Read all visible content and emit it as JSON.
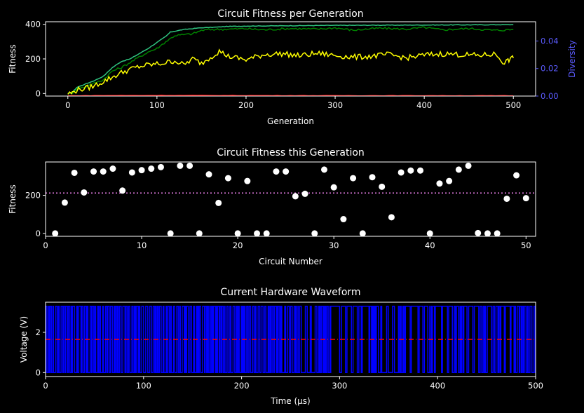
{
  "colors": {
    "background": "#000000",
    "axes": "#ffffff",
    "best": "#2ec27e",
    "upper": "#008000",
    "average": "#ffff00",
    "diversity": "#ff0000",
    "diversity_axis": "#5b5bff",
    "scatter": "#ffffff",
    "mean_line": "#ee82ee",
    "waveform": "#0000ff",
    "threshold": "#ff0000"
  },
  "chart_data": [
    {
      "id": "fitness-per-generation",
      "type": "line",
      "title": "Circuit Fitness per Generation",
      "xlabel": "Generation",
      "ylabel": "Fitness",
      "y2label": "Diversity",
      "xlim": [
        -25,
        525
      ],
      "ylim": [
        -15,
        415
      ],
      "y2lim": [
        0,
        0.054
      ],
      "xticks": [
        "0",
        "100",
        "200",
        "300",
        "400",
        "500"
      ],
      "yticks": [
        "0",
        "200",
        "400"
      ],
      "y2ticks": [
        "0.00",
        "0.02",
        "0.04"
      ],
      "grid": false,
      "series": [
        {
          "key": "best",
          "axis": "left",
          "color": "#2ec27e",
          "x": [
            0,
            5,
            10,
            20,
            30,
            40,
            50,
            60,
            70,
            80,
            90,
            100,
            110,
            115,
            120,
            130,
            140,
            150,
            160,
            170,
            180,
            200,
            250,
            300,
            350,
            400,
            450,
            500
          ],
          "y": [
            0,
            5,
            35,
            55,
            75,
            100,
            150,
            185,
            200,
            230,
            260,
            295,
            330,
            355,
            360,
            370,
            375,
            380,
            382,
            385,
            388,
            390,
            392,
            394,
            395,
            396,
            397,
            398
          ]
        },
        {
          "key": "upper",
          "axis": "left",
          "color": "#008000",
          "x": [
            0,
            5,
            10,
            20,
            30,
            40,
            50,
            60,
            70,
            80,
            90,
            100,
            110,
            120,
            130,
            140,
            150,
            160,
            180,
            200,
            220,
            250,
            280,
            300,
            320,
            350,
            380,
            400,
            420,
            450,
            480,
            500
          ],
          "y": [
            0,
            5,
            25,
            40,
            60,
            80,
            130,
            150,
            180,
            210,
            240,
            260,
            300,
            335,
            340,
            345,
            365,
            370,
            372,
            375,
            368,
            376,
            372,
            380,
            366,
            378,
            372,
            382,
            368,
            376,
            365,
            370
          ]
        },
        {
          "key": "average",
          "axis": "left",
          "color": "#ffff00",
          "x": [
            0,
            5,
            10,
            20,
            30,
            40,
            50,
            60,
            70,
            80,
            90,
            100,
            110,
            120,
            130,
            140,
            150,
            160,
            170,
            180,
            190,
            200,
            220,
            240,
            260,
            280,
            300,
            320,
            340,
            360,
            380,
            400,
            420,
            440,
            460,
            480,
            490,
            495,
            500
          ],
          "y": [
            0,
            3,
            20,
            30,
            45,
            70,
            95,
            120,
            140,
            155,
            165,
            170,
            178,
            190,
            165,
            200,
            175,
            210,
            245,
            215,
            205,
            195,
            225,
            230,
            218,
            232,
            220,
            210,
            215,
            225,
            205,
            222,
            230,
            225,
            220,
            228,
            175,
            195,
            205
          ]
        },
        {
          "key": "diversity",
          "axis": "right",
          "color": "#ff0000",
          "x": [
            0,
            50,
            100,
            200,
            300,
            400,
            500
          ],
          "y": [
            0.0002,
            0.0004,
            0.0005,
            0.0004,
            0.0003,
            0.0003,
            0.0002
          ]
        }
      ]
    },
    {
      "id": "fitness-this-generation",
      "type": "scatter",
      "title": "Circuit Fitness this Generation",
      "xlabel": "Circuit Number",
      "ylabel": "Fitness",
      "xlim": [
        0,
        51
      ],
      "ylim": [
        -15,
        375
      ],
      "xticks": [
        "0",
        "10",
        "20",
        "30",
        "40",
        "50"
      ],
      "yticks": [
        "0",
        "200"
      ],
      "mean": 212,
      "grid": false,
      "x": [
        1,
        2,
        3,
        4,
        5,
        6,
        7,
        8,
        9,
        10,
        11,
        12,
        13,
        14,
        15,
        16,
        17,
        18,
        19,
        20,
        21,
        22,
        23,
        24,
        25,
        26,
        27,
        28,
        29,
        30,
        31,
        32,
        33,
        34,
        35,
        36,
        37,
        38,
        39,
        40,
        41,
        42,
        43,
        44,
        45,
        46,
        47,
        48,
        49,
        50
      ],
      "y": [
        0,
        162,
        318,
        215,
        325,
        325,
        340,
        225,
        320,
        332,
        340,
        348,
        0,
        355,
        355,
        0,
        310,
        160,
        290,
        0,
        275,
        0,
        0,
        325,
        325,
        195,
        208,
        0,
        335,
        242,
        75,
        290,
        0,
        295,
        245,
        85,
        320,
        330,
        330,
        0,
        262,
        275,
        335,
        355,
        2,
        0,
        0,
        182,
        305,
        185
      ]
    },
    {
      "id": "hardware-waveform",
      "type": "line",
      "title": "Current Hardware Waveform",
      "xlabel": "Time (µs)",
      "ylabel": "Voltage (V)",
      "xlim": [
        0,
        500
      ],
      "ylim": [
        -0.2,
        3.5
      ],
      "xticks": [
        "0",
        "100",
        "200",
        "300",
        "400",
        "500"
      ],
      "yticks": [
        "0",
        "2"
      ],
      "threshold": 1.65,
      "high": 3.3,
      "low": 0,
      "grid": false,
      "dense_intervals": [
        [
          0,
          240
        ],
        [
          250,
          262
        ],
        [
          275,
          292
        ],
        [
          330,
          340
        ],
        [
          360,
          368
        ],
        [
          390,
          398
        ],
        [
          418,
          427
        ],
        [
          445,
          452
        ],
        [
          458,
          465
        ],
        [
          478,
          500
        ]
      ],
      "pulses": [
        228,
        232,
        236,
        240,
        244,
        247,
        256,
        265,
        270,
        279,
        283,
        290,
        300,
        306,
        312,
        318,
        322,
        335,
        342,
        348,
        354,
        365,
        372,
        380,
        385,
        392,
        404,
        410,
        415,
        430,
        436,
        442,
        455,
        468,
        474
      ]
    }
  ]
}
